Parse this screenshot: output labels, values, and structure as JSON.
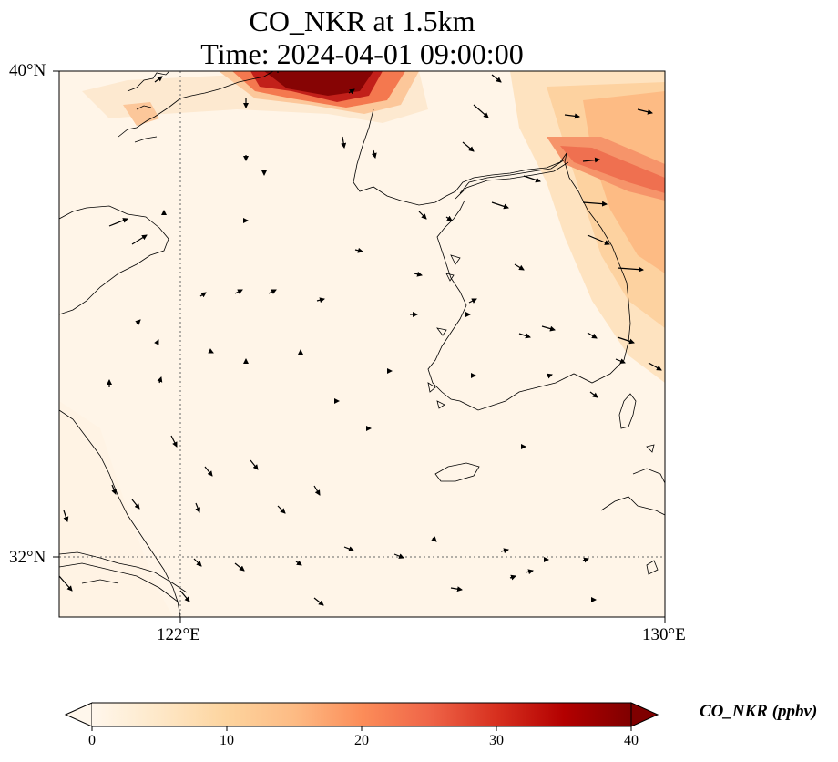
{
  "title": {
    "line1": "CO_NKR at 1.5km",
    "line2": "Time: 2024-04-01 09:00:00"
  },
  "map": {
    "lon_range": [
      120,
      130
    ],
    "lat_range": [
      31,
      40
    ],
    "gridlines": {
      "lon": [
        122
      ],
      "lat": [
        32
      ],
      "style": "dotted"
    },
    "coastlines": true,
    "vectors": "wind arrows"
  },
  "axes": {
    "lat_ticks": [
      "40°N",
      "32°N"
    ],
    "lon_ticks": [
      "122°E",
      "130°E"
    ]
  },
  "colorbar": {
    "label": "CO_NKR (ppbv)",
    "ticks": [
      "0",
      "10",
      "20",
      "30",
      "40"
    ],
    "range": [
      0,
      40
    ],
    "colormap": "OrRd",
    "extend": "both",
    "colors": [
      "#fff7ec",
      "#fee8c8",
      "#fdd49e",
      "#fdbb84",
      "#fc8d59",
      "#ef6548",
      "#d7301f",
      "#b30000",
      "#7f0000"
    ]
  }
}
